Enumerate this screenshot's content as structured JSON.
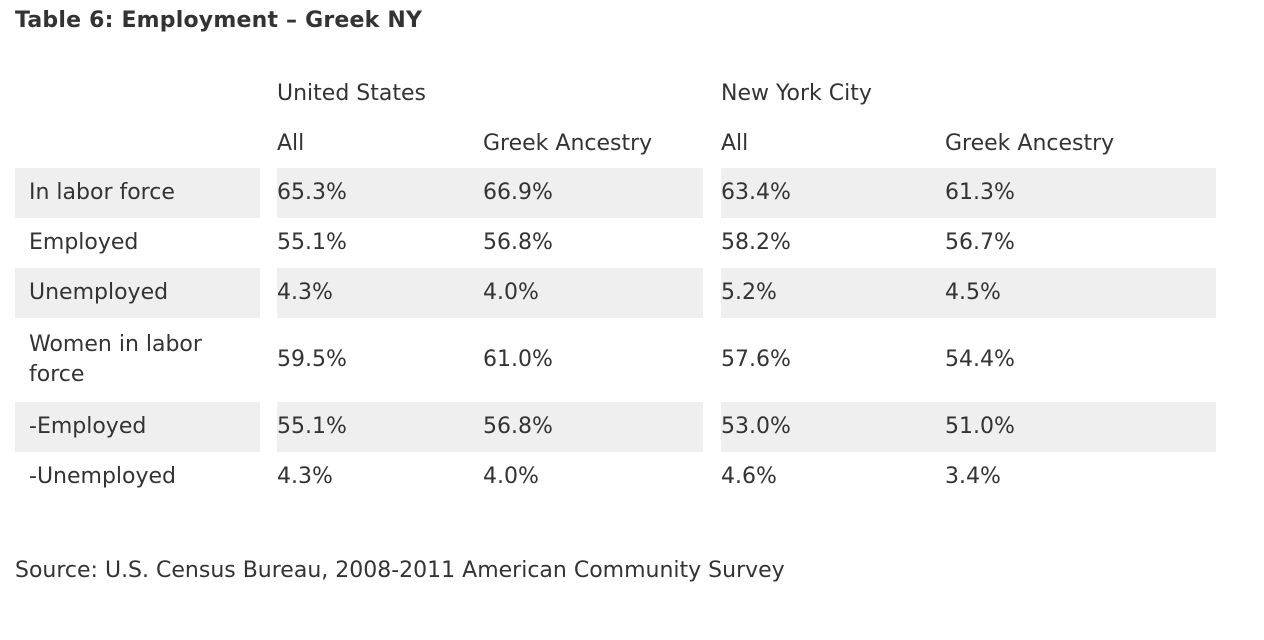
{
  "title": "Table 6: Employment – Greek NY",
  "groups": [
    "United States",
    "New York City"
  ],
  "columns": [
    "All",
    "Greek Ancestry",
    "All",
    "Greek Ancestry"
  ],
  "rows": [
    {
      "label": "In labor force",
      "values": [
        "65.3%",
        "66.9%",
        "63.4%",
        "61.3%"
      ]
    },
    {
      "label": "Employed",
      "values": [
        "55.1%",
        "56.8%",
        "58.2%",
        "56.7%"
      ]
    },
    {
      "label": "Unemployed",
      "values": [
        "4.3%",
        "4.0%",
        "5.2%",
        "4.5%"
      ]
    },
    {
      "label": "Women in labor force",
      "values": [
        "59.5%",
        "61.0%",
        "57.6%",
        "54.4%"
      ]
    },
    {
      "label": "-Employed",
      "values": [
        "55.1%",
        "56.8%",
        "53.0%",
        "51.0%"
      ]
    },
    {
      "label": "-Unemployed",
      "values": [
        "4.3%",
        "4.0%",
        "4.6%",
        "3.4%"
      ]
    }
  ],
  "source": "Source: U.S. Census Bureau, 2008-2011 American Community Survey"
}
